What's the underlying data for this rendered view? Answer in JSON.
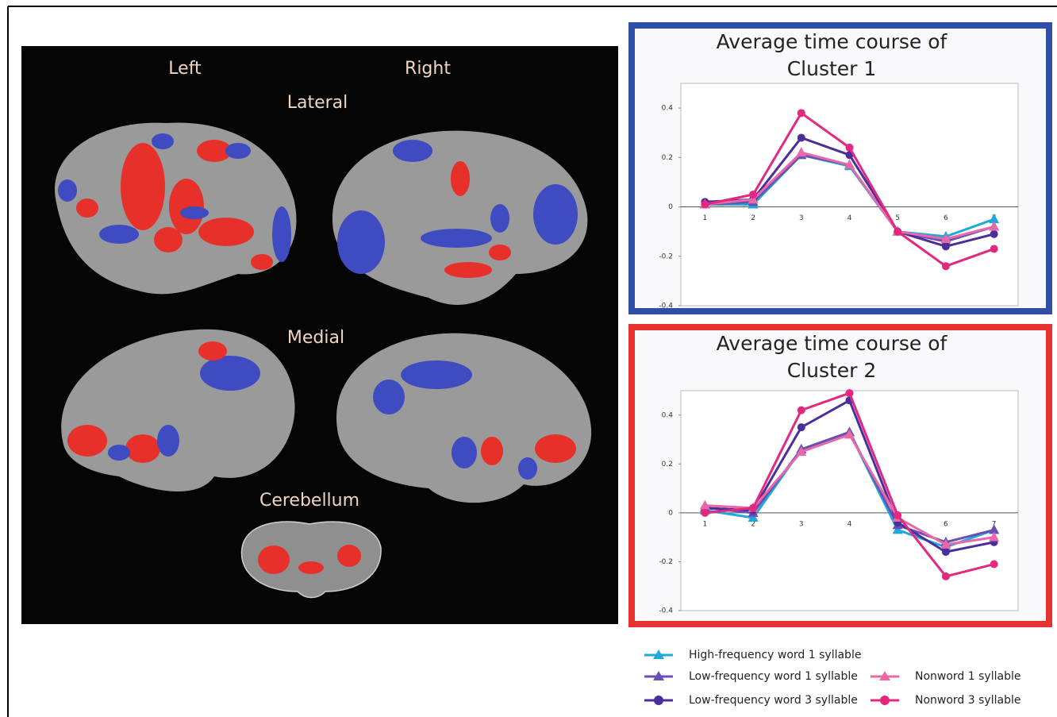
{
  "brain_panel": {
    "hemisphere_labels": [
      "Left",
      "Right"
    ],
    "view_labels": [
      "Lateral",
      "Medial",
      "Cerebellum"
    ]
  },
  "chart_data": [
    {
      "type": "line",
      "title": "Average time course of Cluster 1",
      "categories": [
        "1",
        "2",
        "3",
        "4",
        "5",
        "6",
        "7"
      ],
      "ylim": [
        -0.4,
        0.5
      ],
      "yticks": [
        -0.4,
        -0.2,
        0,
        0.2,
        0.4
      ],
      "frame_color": "#2f4ea6",
      "series": [
        {
          "name": "High-frequency word 1 syllable",
          "color": "#1ea8dc",
          "marker": "triangle",
          "values": [
            0.01,
            0.01,
            0.21,
            0.165,
            -0.1,
            -0.12,
            -0.05
          ]
        },
        {
          "name": "Low-frequency word 1 syllable",
          "color": "#6a4fb3",
          "marker": "triangle",
          "values": [
            0.01,
            0.02,
            0.21,
            0.17,
            -0.1,
            -0.14,
            -0.08
          ]
        },
        {
          "name": "Low-frequency word 3 syllable",
          "color": "#4a2e9a",
          "marker": "circle",
          "values": [
            0.02,
            0.03,
            0.28,
            0.21,
            -0.1,
            -0.16,
            -0.11
          ]
        },
        {
          "name": "Nonword 1 syllable",
          "color": "#e868a8",
          "marker": "triangle",
          "values": [
            0.01,
            0.03,
            0.22,
            0.17,
            -0.1,
            -0.13,
            -0.08
          ]
        },
        {
          "name": "Nonword 3 syllable",
          "color": "#e3287f",
          "marker": "circle",
          "values": [
            0.01,
            0.05,
            0.38,
            0.24,
            -0.1,
            -0.24,
            -0.17
          ]
        }
      ]
    },
    {
      "type": "line",
      "title": "Average time course of Cluster 2",
      "categories": [
        "1",
        "2",
        "3",
        "4",
        "5",
        "6",
        "7"
      ],
      "ylim": [
        -0.4,
        0.5
      ],
      "yticks": [
        -0.4,
        -0.2,
        0,
        0.2,
        0.4
      ],
      "frame_color": "#e8322f",
      "series": [
        {
          "name": "High-frequency word 1 syllable",
          "color": "#1ea8dc",
          "marker": "triangle",
          "values": [
            0.01,
            -0.02,
            0.26,
            0.33,
            -0.07,
            -0.14,
            -0.07
          ]
        },
        {
          "name": "Low-frequency word 1 syllable",
          "color": "#6a4fb3",
          "marker": "triangle",
          "values": [
            0.02,
            0.0,
            0.26,
            0.33,
            -0.05,
            -0.12,
            -0.07
          ]
        },
        {
          "name": "Low-frequency word 3 syllable",
          "color": "#4a2e9a",
          "marker": "circle",
          "values": [
            0.02,
            0.01,
            0.35,
            0.46,
            -0.04,
            -0.16,
            -0.12
          ]
        },
        {
          "name": "Nonword 1 syllable",
          "color": "#e868a8",
          "marker": "triangle",
          "values": [
            0.03,
            0.02,
            0.25,
            0.32,
            -0.02,
            -0.13,
            -0.1
          ]
        },
        {
          "name": "Nonword 3 syllable",
          "color": "#e3287f",
          "marker": "circle",
          "values": [
            0.0,
            0.02,
            0.42,
            0.49,
            -0.01,
            -0.26,
            -0.21
          ]
        }
      ]
    }
  ]
}
